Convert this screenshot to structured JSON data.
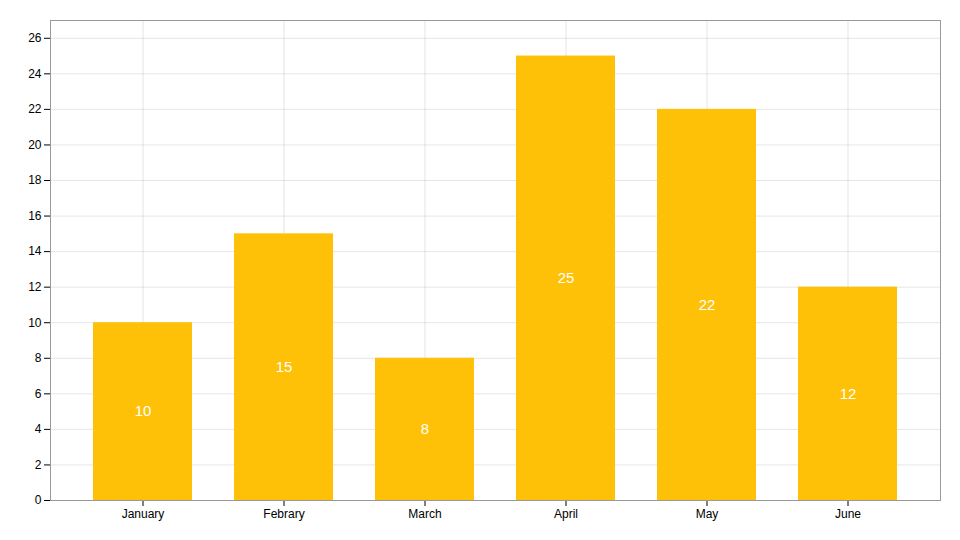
{
  "chart_data": {
    "type": "bar",
    "categories": [
      "January",
      "Febrary",
      "March",
      "April",
      "May",
      "June"
    ],
    "values": [
      10,
      15,
      8,
      25,
      22,
      12
    ],
    "color": "#FFC107",
    "ylim": [
      0,
      27
    ],
    "yticks": [
      0,
      2,
      4,
      6,
      8,
      10,
      12,
      14,
      16,
      18,
      20,
      22,
      24,
      26
    ],
    "grid": true,
    "data_labels": true
  }
}
